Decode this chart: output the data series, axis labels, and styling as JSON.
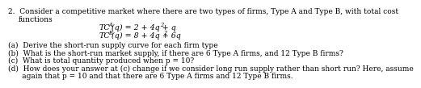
{
  "bg_color": "#ffffff",
  "text_color": "#000000",
  "font_size": 6.5,
  "eq_font_size": 6.8,
  "line1": "2.  Consider a competitive market where there are two types of firms, Type A and Type B, with total cost",
  "line2": "functions",
  "tc_a_main": "(q) = 2 + 4q + q",
  "tc_b_main": "(q) = 8 + 4q + 6q",
  "item_a": "(a)  Derive the short-run supply curve for each firm type",
  "item_b": "(b)  What is the short-run market supply, if there are 6 Type A firms, and 12 Type B firms?",
  "item_c": "(c)  What is total quantity produced when p = 10?",
  "item_d1": "(d)  How does your answer at (c) change if we consider long run supply rather than short run? Here, assume",
  "item_d2": "      again that p = 10 and that there are 6 Type A firms and 12 Type B firms."
}
